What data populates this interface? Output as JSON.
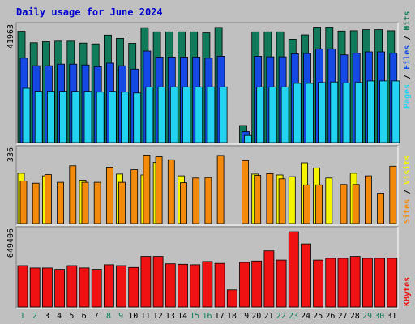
{
  "title": "Daily usage for June 2024",
  "chart_data": [
    {
      "type": "bar",
      "panel": "hits-files-pages",
      "categories": [
        "1",
        "2",
        "3",
        "4",
        "5",
        "6",
        "7",
        "8",
        "9",
        "10",
        "11",
        "12",
        "13",
        "14",
        "15",
        "16",
        "17",
        "18",
        "19",
        "20",
        "21",
        "22",
        "23",
        "24",
        "25",
        "26",
        "27",
        "28",
        "29",
        "30",
        "31"
      ],
      "y_max_label": "41963",
      "ylim": [
        0,
        41963
      ],
      "series": [
        {
          "name": "Hits",
          "color": "#117a5a",
          "values": [
            40600,
            36400,
            36800,
            37000,
            37000,
            36300,
            36000,
            39200,
            38000,
            36200,
            41900,
            40400,
            40400,
            40400,
            40400,
            40000,
            42000,
            0,
            6200,
            40400,
            40400,
            40400,
            37700,
            39300,
            42100,
            42100,
            40700,
            40800,
            41200,
            41200,
            40800
          ]
        },
        {
          "name": "Files",
          "color": "#1549e6",
          "values": [
            30800,
            28000,
            28000,
            28600,
            28600,
            28300,
            27700,
            29000,
            28000,
            26800,
            33400,
            31200,
            31200,
            31200,
            31200,
            30800,
            31500,
            0,
            4000,
            31500,
            31300,
            31300,
            32400,
            32500,
            34200,
            34200,
            32000,
            32600,
            33100,
            33100,
            32600
          ]
        },
        {
          "name": "Pages",
          "color": "#22d3f2",
          "values": [
            19800,
            18700,
            18700,
            18700,
            18700,
            18700,
            18400,
            18700,
            18400,
            18100,
            20300,
            20300,
            20300,
            20300,
            20300,
            20300,
            20300,
            0,
            2600,
            20300,
            20300,
            20300,
            21600,
            21600,
            21900,
            22100,
            21700,
            21900,
            22500,
            22500,
            22500
          ]
        }
      ]
    },
    {
      "type": "bar",
      "panel": "visits-sites",
      "categories": [
        "1",
        "2",
        "3",
        "4",
        "5",
        "6",
        "7",
        "8",
        "9",
        "10",
        "11",
        "12",
        "13",
        "14",
        "15",
        "16",
        "17",
        "18",
        "19",
        "20",
        "21",
        "22",
        "23",
        "24",
        "25",
        "26",
        "27",
        "28",
        "29",
        "30",
        "31"
      ],
      "y_max_label": "336",
      "ylim": [
        0,
        336
      ],
      "series": [
        {
          "name": "Visits",
          "color": "#f5f500",
          "values": [
            232,
            0,
            220,
            0,
            0,
            200,
            0,
            0,
            228,
            0,
            224,
            282,
            0,
            220,
            0,
            0,
            0,
            0,
            0,
            228,
            0,
            224,
            216,
            280,
            256,
            210,
            0,
            232,
            0,
            0,
            0
          ]
        },
        {
          "name": "Sites",
          "color": "#f48a0c",
          "values": [
            196,
            186,
            226,
            190,
            266,
            190,
            190,
            260,
            190,
            248,
            316,
            308,
            294,
            188,
            210,
            212,
            314,
            0,
            290,
            222,
            230,
            206,
            0,
            178,
            178,
            0,
            180,
            180,
            220,
            140,
            264
          ]
        }
      ]
    },
    {
      "type": "bar",
      "panel": "kbytes",
      "categories": [
        "1",
        "2",
        "3",
        "4",
        "5",
        "6",
        "7",
        "8",
        "9",
        "10",
        "11",
        "12",
        "13",
        "14",
        "15",
        "16",
        "17",
        "18",
        "19",
        "20",
        "21",
        "22",
        "23",
        "24",
        "25",
        "26",
        "27",
        "28",
        "29",
        "30",
        "31"
      ],
      "y_max_label": "649406",
      "ylim": [
        0,
        649406
      ],
      "series": [
        {
          "name": "KBytes",
          "color": "#f01212",
          "values": [
            356000,
            336000,
            336000,
            324000,
            356000,
            336000,
            324000,
            364000,
            356000,
            340000,
            436000,
            436000,
            372000,
            368000,
            364000,
            392000,
            376000,
            148000,
            384000,
            396000,
            484000,
            404000,
            649000,
            544000,
            404000,
            420000,
            420000,
            436000,
            420000,
            420000,
            420000
          ]
        }
      ]
    }
  ],
  "colors": {
    "plot_bg": "#c0c0c0",
    "title": "#0000cc",
    "day_weekday": "#000000",
    "day_weekend": "#117a5a",
    "slash": "#000000",
    "axis_label": "#000000"
  },
  "weekend_days": [
    "1",
    "2",
    "8",
    "9",
    "15",
    "16",
    "22",
    "23",
    "29",
    "30"
  ]
}
